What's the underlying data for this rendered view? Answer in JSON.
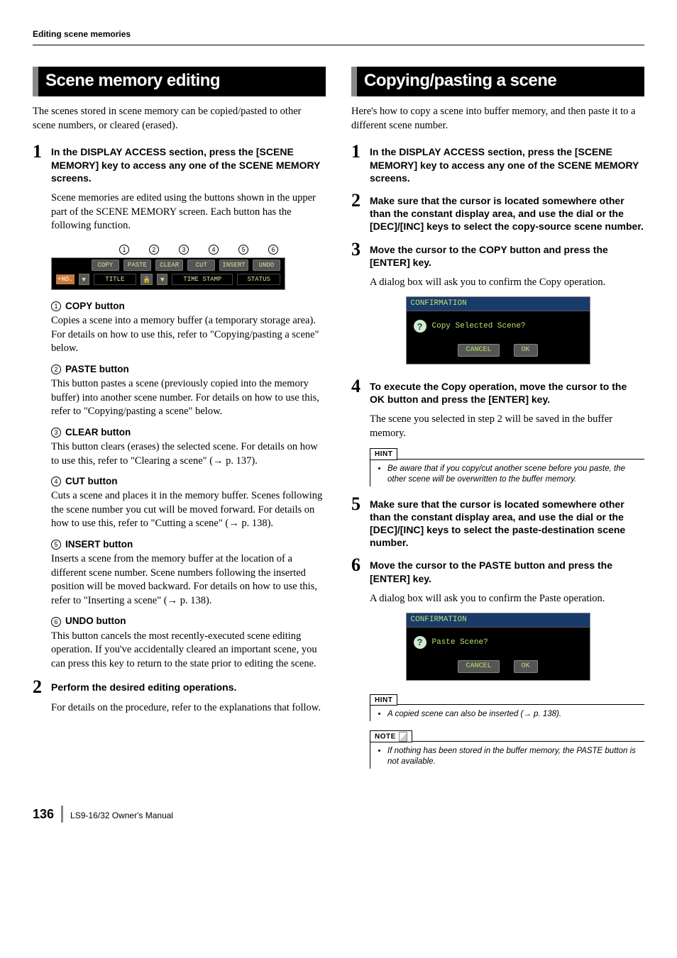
{
  "header": {
    "title": "Editing scene memories"
  },
  "left": {
    "section_title": "Scene memory editing",
    "intro": "The scenes stored in scene memory can be copied/pasted to other scene numbers, or cleared (erased).",
    "step1": {
      "num": "1",
      "heading": "In the DISPLAY ACCESS section, press the [SCENE MEMORY] key to access any one of the SCENE MEMORY screens.",
      "body": "Scene memories are edited using the buttons shown in the upper part of the SCENE MEMORY screen. Each button has the following function."
    },
    "toolbar": {
      "callouts": [
        "1",
        "2",
        "3",
        "4",
        "5",
        "6"
      ],
      "row1": [
        "COPY",
        "PASTE",
        "CLEAR",
        "CUT",
        "INSERT",
        "UNDO"
      ],
      "no_label": "+NO.",
      "title_label": "TITLE",
      "time_label": "TIME STAMP",
      "status_label": "STATUS"
    },
    "buttons": [
      {
        "n": "1",
        "label": "COPY button",
        "body": "Copies a scene into a memory buffer (a temporary storage area). For details on how to use this, refer to \"Copying/pasting a scene\" below."
      },
      {
        "n": "2",
        "label": "PASTE button",
        "body": "This button pastes a scene (previously copied into the memory buffer) into another scene number. For details on how to use this, refer to \"Copying/pasting a scene\" below."
      },
      {
        "n": "3",
        "label": "CLEAR button",
        "body": "This button clears (erases) the selected scene. For details on how to use this, refer to \"Clearing a scene\" (→ p. 137)."
      },
      {
        "n": "4",
        "label": "CUT button",
        "body": "Cuts a scene and places it in the memory buffer. Scenes following the scene number you cut will be moved forward. For details on how to use this, refer to \"Cutting a scene\" (→ p. 138)."
      },
      {
        "n": "5",
        "label": "INSERT button",
        "body": "Inserts a scene from the memory buffer at the location of a different scene number. Scene numbers following the inserted position will be moved backward. For details on how to use this, refer to \"Inserting a scene\" (→ p. 138)."
      },
      {
        "n": "6",
        "label": "UNDO button",
        "body": "This button cancels the most recently-executed scene editing operation. If you've accidentally cleared an important scene, you can press this key to return to the state prior to editing the scene."
      }
    ],
    "step2": {
      "num": "2",
      "heading": "Perform the desired editing operations.",
      "body": "For details on the procedure, refer to the explanations that follow."
    }
  },
  "right": {
    "section_title": "Copying/pasting a scene",
    "intro": "Here's how to copy a scene into buffer memory, and then paste it to a different scene number.",
    "step1": {
      "num": "1",
      "heading": "In the DISPLAY ACCESS section, press the [SCENE MEMORY] key to access any one of the SCENE MEMORY screens."
    },
    "step2": {
      "num": "2",
      "heading": "Make sure that the cursor is located somewhere other than the constant display area, and use the dial or the [DEC]/[INC] keys to select the copy-source scene number."
    },
    "step3": {
      "num": "3",
      "heading": "Move the cursor to the COPY button and press the [ENTER] key.",
      "body": "A dialog box will ask you to confirm the Copy operation."
    },
    "dialog1": {
      "title": "CONFIRMATION",
      "text": "Copy Selected Scene?",
      "cancel": "CANCEL",
      "ok": "OK"
    },
    "step4": {
      "num": "4",
      "heading": "To execute the Copy operation, move the cursor to the OK button and press the [ENTER] key.",
      "body": "The scene you selected in step 2 will be saved in the buffer memory."
    },
    "hint1": {
      "tag": "HINT",
      "text": "Be aware that if you copy/cut another scene before you paste, the other scene will be overwritten to the buffer memory."
    },
    "step5": {
      "num": "5",
      "heading": "Make sure that the cursor is located somewhere other than the constant display area, and use the dial or the [DEC]/[INC] keys to select the paste-destination scene number."
    },
    "step6": {
      "num": "6",
      "heading": "Move the cursor to the PASTE button and press the [ENTER] key.",
      "body": "A dialog box will ask you to confirm the Paste operation."
    },
    "dialog2": {
      "title": "CONFIRMATION",
      "text": "Paste Scene?",
      "cancel": "CANCEL",
      "ok": "OK"
    },
    "hint2": {
      "tag": "HINT",
      "text": "A copied scene can also be inserted (→ p. 138)."
    },
    "note1": {
      "tag": "NOTE",
      "text": "If nothing has been stored in the buffer memory, the PASTE button is not available."
    }
  },
  "footer": {
    "page": "136",
    "text": "LS9-16/32  Owner's Manual"
  }
}
